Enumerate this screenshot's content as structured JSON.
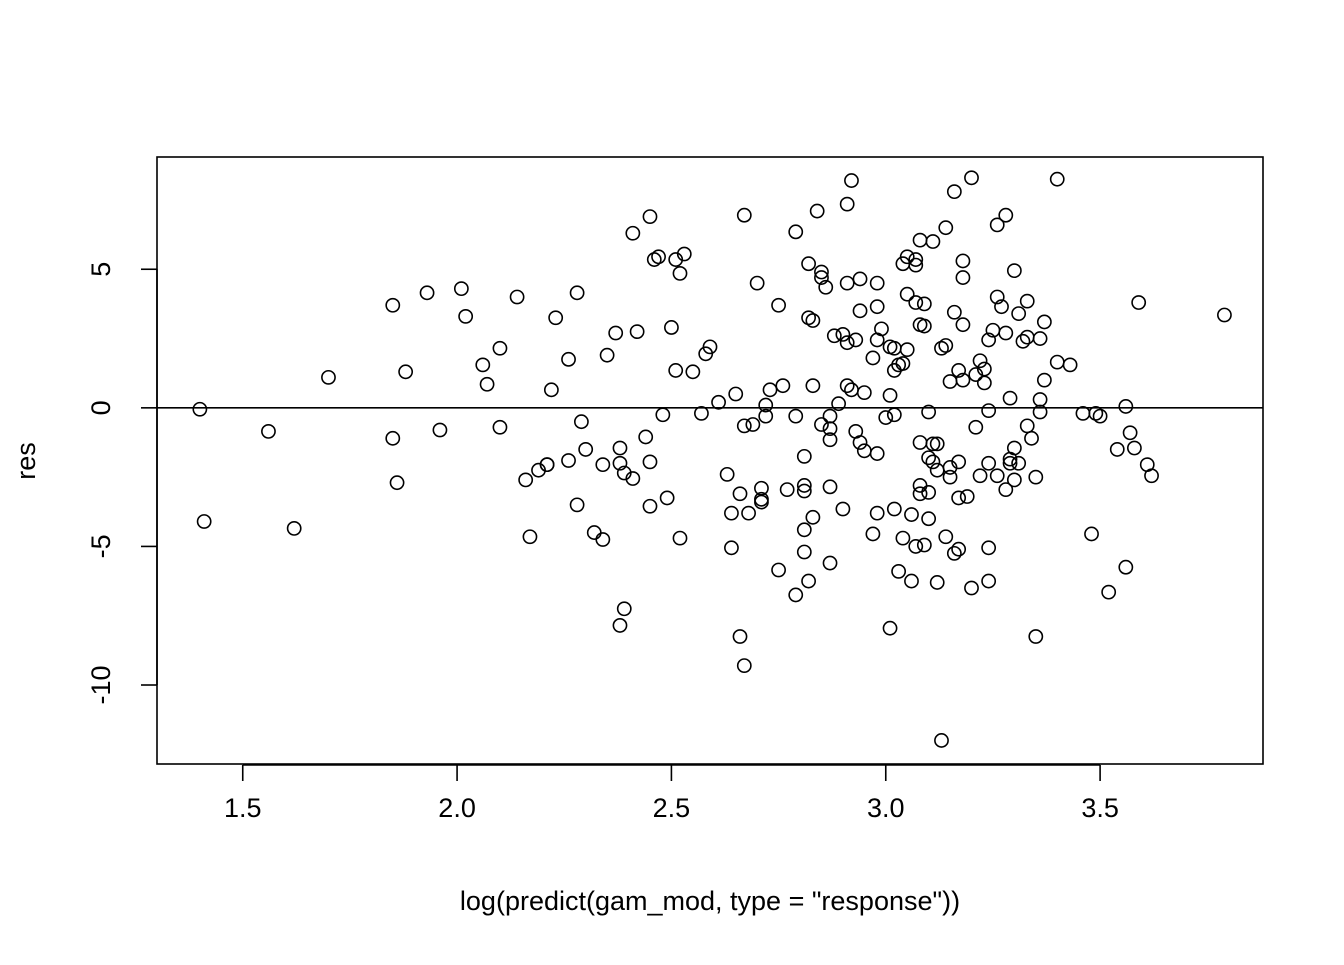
{
  "chart_data": {
    "type": "scatter",
    "title": "",
    "xlabel": "log(predict(gam_mod, type = \"response\"))",
    "ylabel": "res",
    "xlim": [
      1.3,
      3.88
    ],
    "ylim": [
      -12.85,
      9.05
    ],
    "x_ticks": [
      1.5,
      2.0,
      2.5,
      3.0,
      3.5
    ],
    "x_tick_labels": [
      "1.5",
      "2.0",
      "2.5",
      "3.0",
      "3.5"
    ],
    "y_ticks": [
      -10,
      -5,
      0,
      5
    ],
    "y_tick_labels": [
      "-10",
      "-5",
      "0",
      "5"
    ],
    "reference_line": {
      "y": 0
    },
    "grid": false,
    "marker": "open-circle",
    "colors": {
      "points": "#000000",
      "axes": "#000000",
      "background": "#ffffff"
    },
    "points": [
      [
        1.4,
        -0.05
      ],
      [
        1.41,
        -4.1
      ],
      [
        1.56,
        -0.85
      ],
      [
        1.62,
        -4.35
      ],
      [
        1.7,
        1.1
      ],
      [
        1.85,
        3.7
      ],
      [
        1.85,
        -1.1
      ],
      [
        1.86,
        -2.7
      ],
      [
        1.88,
        1.3
      ],
      [
        1.93,
        4.15
      ],
      [
        1.96,
        -0.8
      ],
      [
        2.01,
        4.3
      ],
      [
        2.02,
        3.3
      ],
      [
        2.06,
        1.55
      ],
      [
        2.07,
        0.85
      ],
      [
        2.1,
        2.15
      ],
      [
        2.1,
        -0.7
      ],
      [
        2.14,
        4.0
      ],
      [
        2.16,
        -2.6
      ],
      [
        2.17,
        -4.65
      ],
      [
        2.19,
        -2.25
      ],
      [
        2.21,
        -2.05
      ],
      [
        2.21,
        -2.05
      ],
      [
        2.22,
        0.65
      ],
      [
        2.23,
        3.25
      ],
      [
        2.26,
        1.75
      ],
      [
        2.26,
        -1.9
      ],
      [
        2.28,
        4.15
      ],
      [
        2.28,
        -3.5
      ],
      [
        2.29,
        -0.5
      ],
      [
        2.3,
        -1.5
      ],
      [
        2.32,
        -4.5
      ],
      [
        2.34,
        -4.75
      ],
      [
        2.34,
        -2.05
      ],
      [
        2.35,
        1.9
      ],
      [
        2.37,
        2.7
      ],
      [
        2.38,
        -1.45
      ],
      [
        2.38,
        -2.0
      ],
      [
        2.38,
        -7.85
      ],
      [
        2.39,
        -2.35
      ],
      [
        2.39,
        -7.25
      ],
      [
        2.41,
        6.3
      ],
      [
        2.41,
        -2.55
      ],
      [
        2.42,
        2.75
      ],
      [
        2.44,
        -1.05
      ],
      [
        2.45,
        6.9
      ],
      [
        2.45,
        -1.95
      ],
      [
        2.45,
        -3.55
      ],
      [
        2.46,
        5.35
      ],
      [
        2.47,
        5.45
      ],
      [
        2.48,
        -0.25
      ],
      [
        2.49,
        -3.25
      ],
      [
        2.5,
        2.9
      ],
      [
        2.51,
        1.35
      ],
      [
        2.51,
        5.35
      ],
      [
        2.52,
        4.85
      ],
      [
        2.52,
        -4.7
      ],
      [
        2.53,
        5.55
      ],
      [
        2.55,
        1.3
      ],
      [
        2.57,
        -0.2
      ],
      [
        2.58,
        1.95
      ],
      [
        2.59,
        2.2
      ],
      [
        2.61,
        0.2
      ],
      [
        2.63,
        -2.4
      ],
      [
        2.64,
        -3.8
      ],
      [
        2.64,
        -5.05
      ],
      [
        2.65,
        0.5
      ],
      [
        2.66,
        -8.25
      ],
      [
        2.66,
        -3.1
      ],
      [
        2.67,
        -0.65
      ],
      [
        2.67,
        -9.3
      ],
      [
        2.67,
        6.95
      ],
      [
        2.68,
        -3.8
      ],
      [
        2.69,
        -0.6
      ],
      [
        2.7,
        4.5
      ],
      [
        2.71,
        -2.9
      ],
      [
        2.71,
        -3.3
      ],
      [
        2.71,
        -3.4
      ],
      [
        2.72,
        -0.3
      ],
      [
        2.72,
        0.1
      ],
      [
        2.73,
        0.65
      ],
      [
        2.75,
        3.7
      ],
      [
        2.75,
        -5.85
      ],
      [
        2.76,
        0.8
      ],
      [
        2.77,
        -2.95
      ],
      [
        2.79,
        -6.75
      ],
      [
        2.79,
        -0.3
      ],
      [
        2.79,
        6.35
      ],
      [
        2.81,
        -1.75
      ],
      [
        2.81,
        -3.0
      ],
      [
        2.81,
        -2.8
      ],
      [
        2.81,
        -5.2
      ],
      [
        2.81,
        -4.4
      ],
      [
        2.82,
        5.2
      ],
      [
        2.82,
        3.25
      ],
      [
        2.82,
        -6.25
      ],
      [
        2.83,
        3.15
      ],
      [
        2.83,
        -3.95
      ],
      [
        2.83,
        0.8
      ],
      [
        2.84,
        7.1
      ],
      [
        2.85,
        4.9
      ],
      [
        2.85,
        4.7
      ],
      [
        2.85,
        -0.6
      ],
      [
        2.86,
        4.35
      ],
      [
        2.87,
        -0.75
      ],
      [
        2.87,
        -1.15
      ],
      [
        2.87,
        -2.85
      ],
      [
        2.87,
        -5.6
      ],
      [
        2.87,
        -0.3
      ],
      [
        2.88,
        2.6
      ],
      [
        2.89,
        0.15
      ],
      [
        2.9,
        -3.65
      ],
      [
        2.9,
        2.65
      ],
      [
        2.91,
        0.8
      ],
      [
        2.91,
        4.5
      ],
      [
        2.91,
        2.35
      ],
      [
        2.91,
        7.35
      ],
      [
        2.92,
        8.2
      ],
      [
        2.92,
        0.65
      ],
      [
        2.93,
        2.45
      ],
      [
        2.93,
        -0.85
      ],
      [
        2.94,
        3.5
      ],
      [
        2.94,
        4.65
      ],
      [
        2.94,
        -1.25
      ],
      [
        2.95,
        0.55
      ],
      [
        2.95,
        -1.55
      ],
      [
        2.97,
        1.8
      ],
      [
        2.97,
        -4.55
      ],
      [
        2.98,
        -3.8
      ],
      [
        2.98,
        3.65
      ],
      [
        2.98,
        -1.65
      ],
      [
        2.98,
        2.45
      ],
      [
        2.98,
        4.5
      ],
      [
        2.99,
        2.85
      ],
      [
        3.0,
        -0.35
      ],
      [
        3.01,
        2.2
      ],
      [
        3.01,
        0.45
      ],
      [
        3.01,
        -7.95
      ],
      [
        3.02,
        2.15
      ],
      [
        3.02,
        1.35
      ],
      [
        3.02,
        -3.65
      ],
      [
        3.02,
        -0.25
      ],
      [
        3.03,
        1.55
      ],
      [
        3.03,
        -5.9
      ],
      [
        3.04,
        -4.7
      ],
      [
        3.04,
        5.2
      ],
      [
        3.04,
        1.6
      ],
      [
        3.05,
        2.1
      ],
      [
        3.05,
        5.45
      ],
      [
        3.05,
        4.1
      ],
      [
        3.06,
        -3.85
      ],
      [
        3.06,
        -6.25
      ],
      [
        3.07,
        -5.0
      ],
      [
        3.07,
        3.8
      ],
      [
        3.07,
        5.15
      ],
      [
        3.07,
        5.35
      ],
      [
        3.08,
        -1.25
      ],
      [
        3.08,
        6.05
      ],
      [
        3.08,
        3.0
      ],
      [
        3.08,
        -2.8
      ],
      [
        3.08,
        -3.1
      ],
      [
        3.09,
        -4.95
      ],
      [
        3.09,
        2.95
      ],
      [
        3.09,
        3.75
      ],
      [
        3.1,
        -1.8
      ],
      [
        3.1,
        -0.15
      ],
      [
        3.1,
        -4.0
      ],
      [
        3.1,
        -3.05
      ],
      [
        3.11,
        6.0
      ],
      [
        3.11,
        -1.95
      ],
      [
        3.11,
        -1.3
      ],
      [
        3.12,
        -1.3
      ],
      [
        3.12,
        -6.3
      ],
      [
        3.12,
        -2.25
      ],
      [
        3.13,
        2.15
      ],
      [
        3.13,
        -12.0
      ],
      [
        3.14,
        2.25
      ],
      [
        3.14,
        -4.65
      ],
      [
        3.14,
        6.5
      ],
      [
        3.15,
        -2.5
      ],
      [
        3.15,
        0.95
      ],
      [
        3.15,
        -2.15
      ],
      [
        3.16,
        7.8
      ],
      [
        3.16,
        -5.25
      ],
      [
        3.16,
        3.45
      ],
      [
        3.17,
        1.35
      ],
      [
        3.17,
        -5.1
      ],
      [
        3.17,
        -1.95
      ],
      [
        3.17,
        -3.25
      ],
      [
        3.18,
        3.0
      ],
      [
        3.18,
        4.7
      ],
      [
        3.18,
        5.3
      ],
      [
        3.18,
        1.0
      ],
      [
        3.19,
        -3.2
      ],
      [
        3.2,
        8.3
      ],
      [
        3.2,
        -6.5
      ],
      [
        3.21,
        1.2
      ],
      [
        3.21,
        -0.7
      ],
      [
        3.22,
        1.7
      ],
      [
        3.22,
        -2.45
      ],
      [
        3.23,
        1.4
      ],
      [
        3.23,
        0.9
      ],
      [
        3.24,
        -5.05
      ],
      [
        3.24,
        -6.25
      ],
      [
        3.24,
        -2.0
      ],
      [
        3.24,
        -0.1
      ],
      [
        3.24,
        2.45
      ],
      [
        3.25,
        2.8
      ],
      [
        3.26,
        4.0
      ],
      [
        3.26,
        -2.45
      ],
      [
        3.26,
        6.6
      ],
      [
        3.27,
        3.65
      ],
      [
        3.28,
        -2.95
      ],
      [
        3.28,
        6.95
      ],
      [
        3.28,
        2.7
      ],
      [
        3.29,
        0.35
      ],
      [
        3.29,
        -1.85
      ],
      [
        3.29,
        -2.0
      ],
      [
        3.3,
        4.95
      ],
      [
        3.3,
        -2.6
      ],
      [
        3.3,
        -1.45
      ],
      [
        3.31,
        3.4
      ],
      [
        3.31,
        -2.0
      ],
      [
        3.32,
        2.4
      ],
      [
        3.33,
        2.55
      ],
      [
        3.33,
        -0.65
      ],
      [
        3.33,
        3.85
      ],
      [
        3.34,
        -1.1
      ],
      [
        3.35,
        -2.5
      ],
      [
        3.35,
        -8.25
      ],
      [
        3.36,
        0.3
      ],
      [
        3.36,
        2.5
      ],
      [
        3.36,
        -0.15
      ],
      [
        3.37,
        1.0
      ],
      [
        3.37,
        3.1
      ],
      [
        3.4,
        1.65
      ],
      [
        3.4,
        8.25
      ],
      [
        3.43,
        1.55
      ],
      [
        3.46,
        -0.2
      ],
      [
        3.48,
        -4.55
      ],
      [
        3.49,
        -0.2
      ],
      [
        3.5,
        -0.3
      ],
      [
        3.52,
        -6.65
      ],
      [
        3.54,
        -1.5
      ],
      [
        3.56,
        -5.75
      ],
      [
        3.56,
        0.05
      ],
      [
        3.57,
        -0.9
      ],
      [
        3.58,
        -1.45
      ],
      [
        3.59,
        3.8
      ],
      [
        3.61,
        -2.05
      ],
      [
        3.62,
        -2.45
      ],
      [
        3.79,
        3.35
      ]
    ]
  }
}
